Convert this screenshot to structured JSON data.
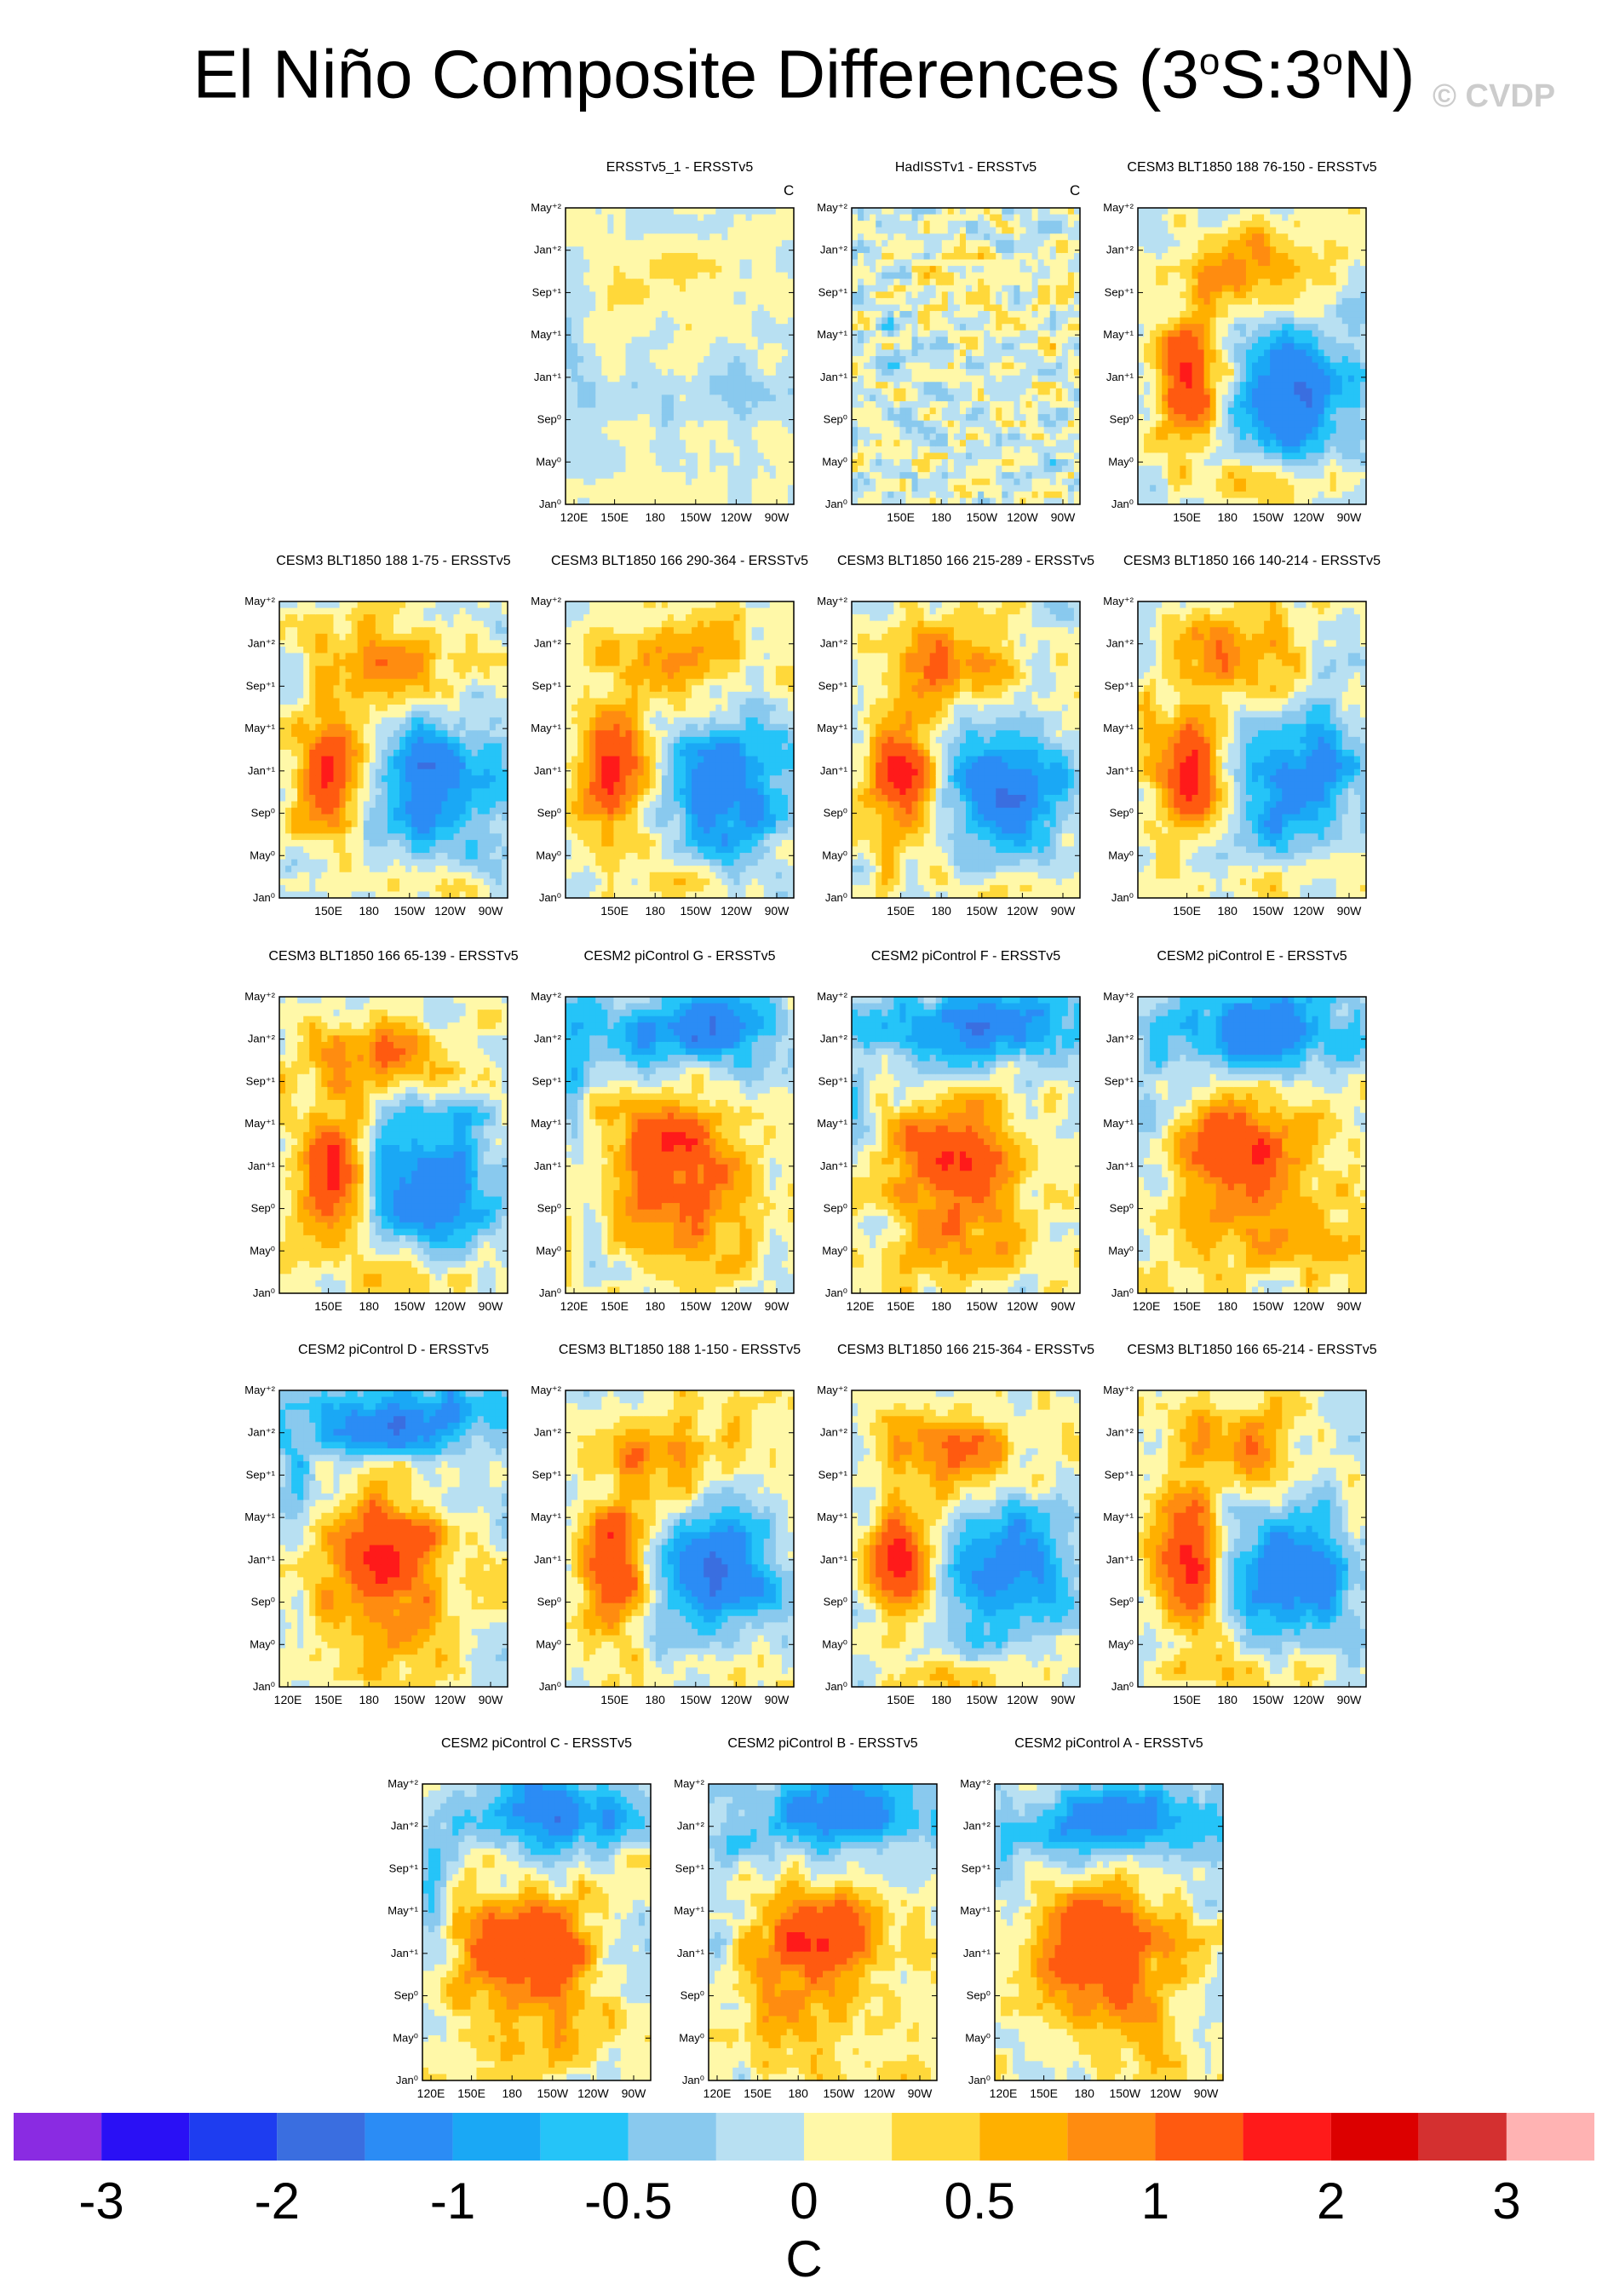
{
  "title": {
    "text": "El Niño Composite Differences (3",
    "sup1": "o",
    "mid": "S:3",
    "sup2": "o",
    "end": "N)"
  },
  "watermark": "© CVDP",
  "chart_data": {
    "type": "heatmap",
    "y_axis_ticks": [
      "Jan⁰",
      "May⁰",
      "Sep⁰",
      "Jan⁺¹",
      "May⁺¹",
      "Sep⁺¹",
      "Jan⁺²",
      "May⁺²"
    ],
    "x_axis_ticks_full": [
      "120E",
      "150E",
      "180",
      "150W",
      "120W",
      "90W"
    ],
    "x_axis_ticks_short": [
      "150E",
      "180",
      "150W",
      "120W",
      "90W"
    ],
    "unit": "C",
    "colorbar": {
      "labels": [
        "-3",
        "-2",
        "-1",
        "-0.5",
        "0",
        "0.5",
        "1",
        "2",
        "3"
      ],
      "colors": [
        "#8a2be2",
        "#2a10f5",
        "#1e3df0",
        "#3a6ee0",
        "#2b8cf5",
        "#1aa8f5",
        "#25c4f8",
        "#89c9ee",
        "#b8e0f2",
        "#fff8a8",
        "#ffd83a",
        "#ffb000",
        "#ff8c10",
        "#ff5a10",
        "#ff1a1a",
        "#dc0000",
        "#d43030",
        "#ffb3b3"
      ],
      "unit": "C"
    },
    "panels": [
      {
        "title": "ERSSTv5_1 - ERSSTv5",
        "unit_label": "C",
        "x_ticks": "full",
        "pattern": "weak"
      },
      {
        "title": "HadISSTv1 - ERSSTv5",
        "unit_label": "C",
        "x_ticks": "short",
        "pattern": "noisy"
      },
      {
        "title": "CESM3 BLT1850 188 76-150 - ERSSTv5",
        "x_ticks": "short",
        "pattern": "cesm3"
      },
      {
        "title": "CESM3 BLT1850 188 1-75 - ERSSTv5",
        "x_ticks": "short",
        "pattern": "cesm3"
      },
      {
        "title": "CESM3 BLT1850 166 290-364 - ERSSTv5",
        "x_ticks": "short",
        "pattern": "cesm3"
      },
      {
        "title": "CESM3 BLT1850 166 215-289 - ERSSTv5",
        "x_ticks": "short",
        "pattern": "cesm3"
      },
      {
        "title": "CESM3 BLT1850 166 140-214 - ERSSTv5",
        "x_ticks": "short",
        "pattern": "cesm3"
      },
      {
        "title": "CESM3 BLT1850 166 65-139 - ERSSTv5",
        "x_ticks": "short",
        "pattern": "cesm3"
      },
      {
        "title": "CESM2 piControl G - ERSSTv5",
        "x_ticks": "full",
        "pattern": "cesm2"
      },
      {
        "title": "CESM2 piControl F - ERSSTv5",
        "x_ticks": "full",
        "pattern": "cesm2"
      },
      {
        "title": "CESM2 piControl E - ERSSTv5",
        "x_ticks": "full",
        "pattern": "cesm2"
      },
      {
        "title": "CESM2 piControl D - ERSSTv5",
        "x_ticks": "full",
        "pattern": "cesm2"
      },
      {
        "title": "CESM3 BLT1850 188 1-150 - ERSSTv5",
        "x_ticks": "short",
        "pattern": "cesm3"
      },
      {
        "title": "CESM3 BLT1850 166 215-364 - ERSSTv5",
        "x_ticks": "short",
        "pattern": "cesm3"
      },
      {
        "title": "CESM3 BLT1850 166 65-214 - ERSSTv5",
        "x_ticks": "short",
        "pattern": "cesm3"
      },
      {
        "title": "CESM2 piControl C - ERSSTv5",
        "x_ticks": "full",
        "pattern": "cesm2"
      },
      {
        "title": "CESM2 piControl B - ERSSTv5",
        "x_ticks": "full",
        "pattern": "cesm2"
      },
      {
        "title": "CESM2 piControl A - ERSSTv5",
        "x_ticks": "full",
        "pattern": "cesm2"
      }
    ]
  }
}
